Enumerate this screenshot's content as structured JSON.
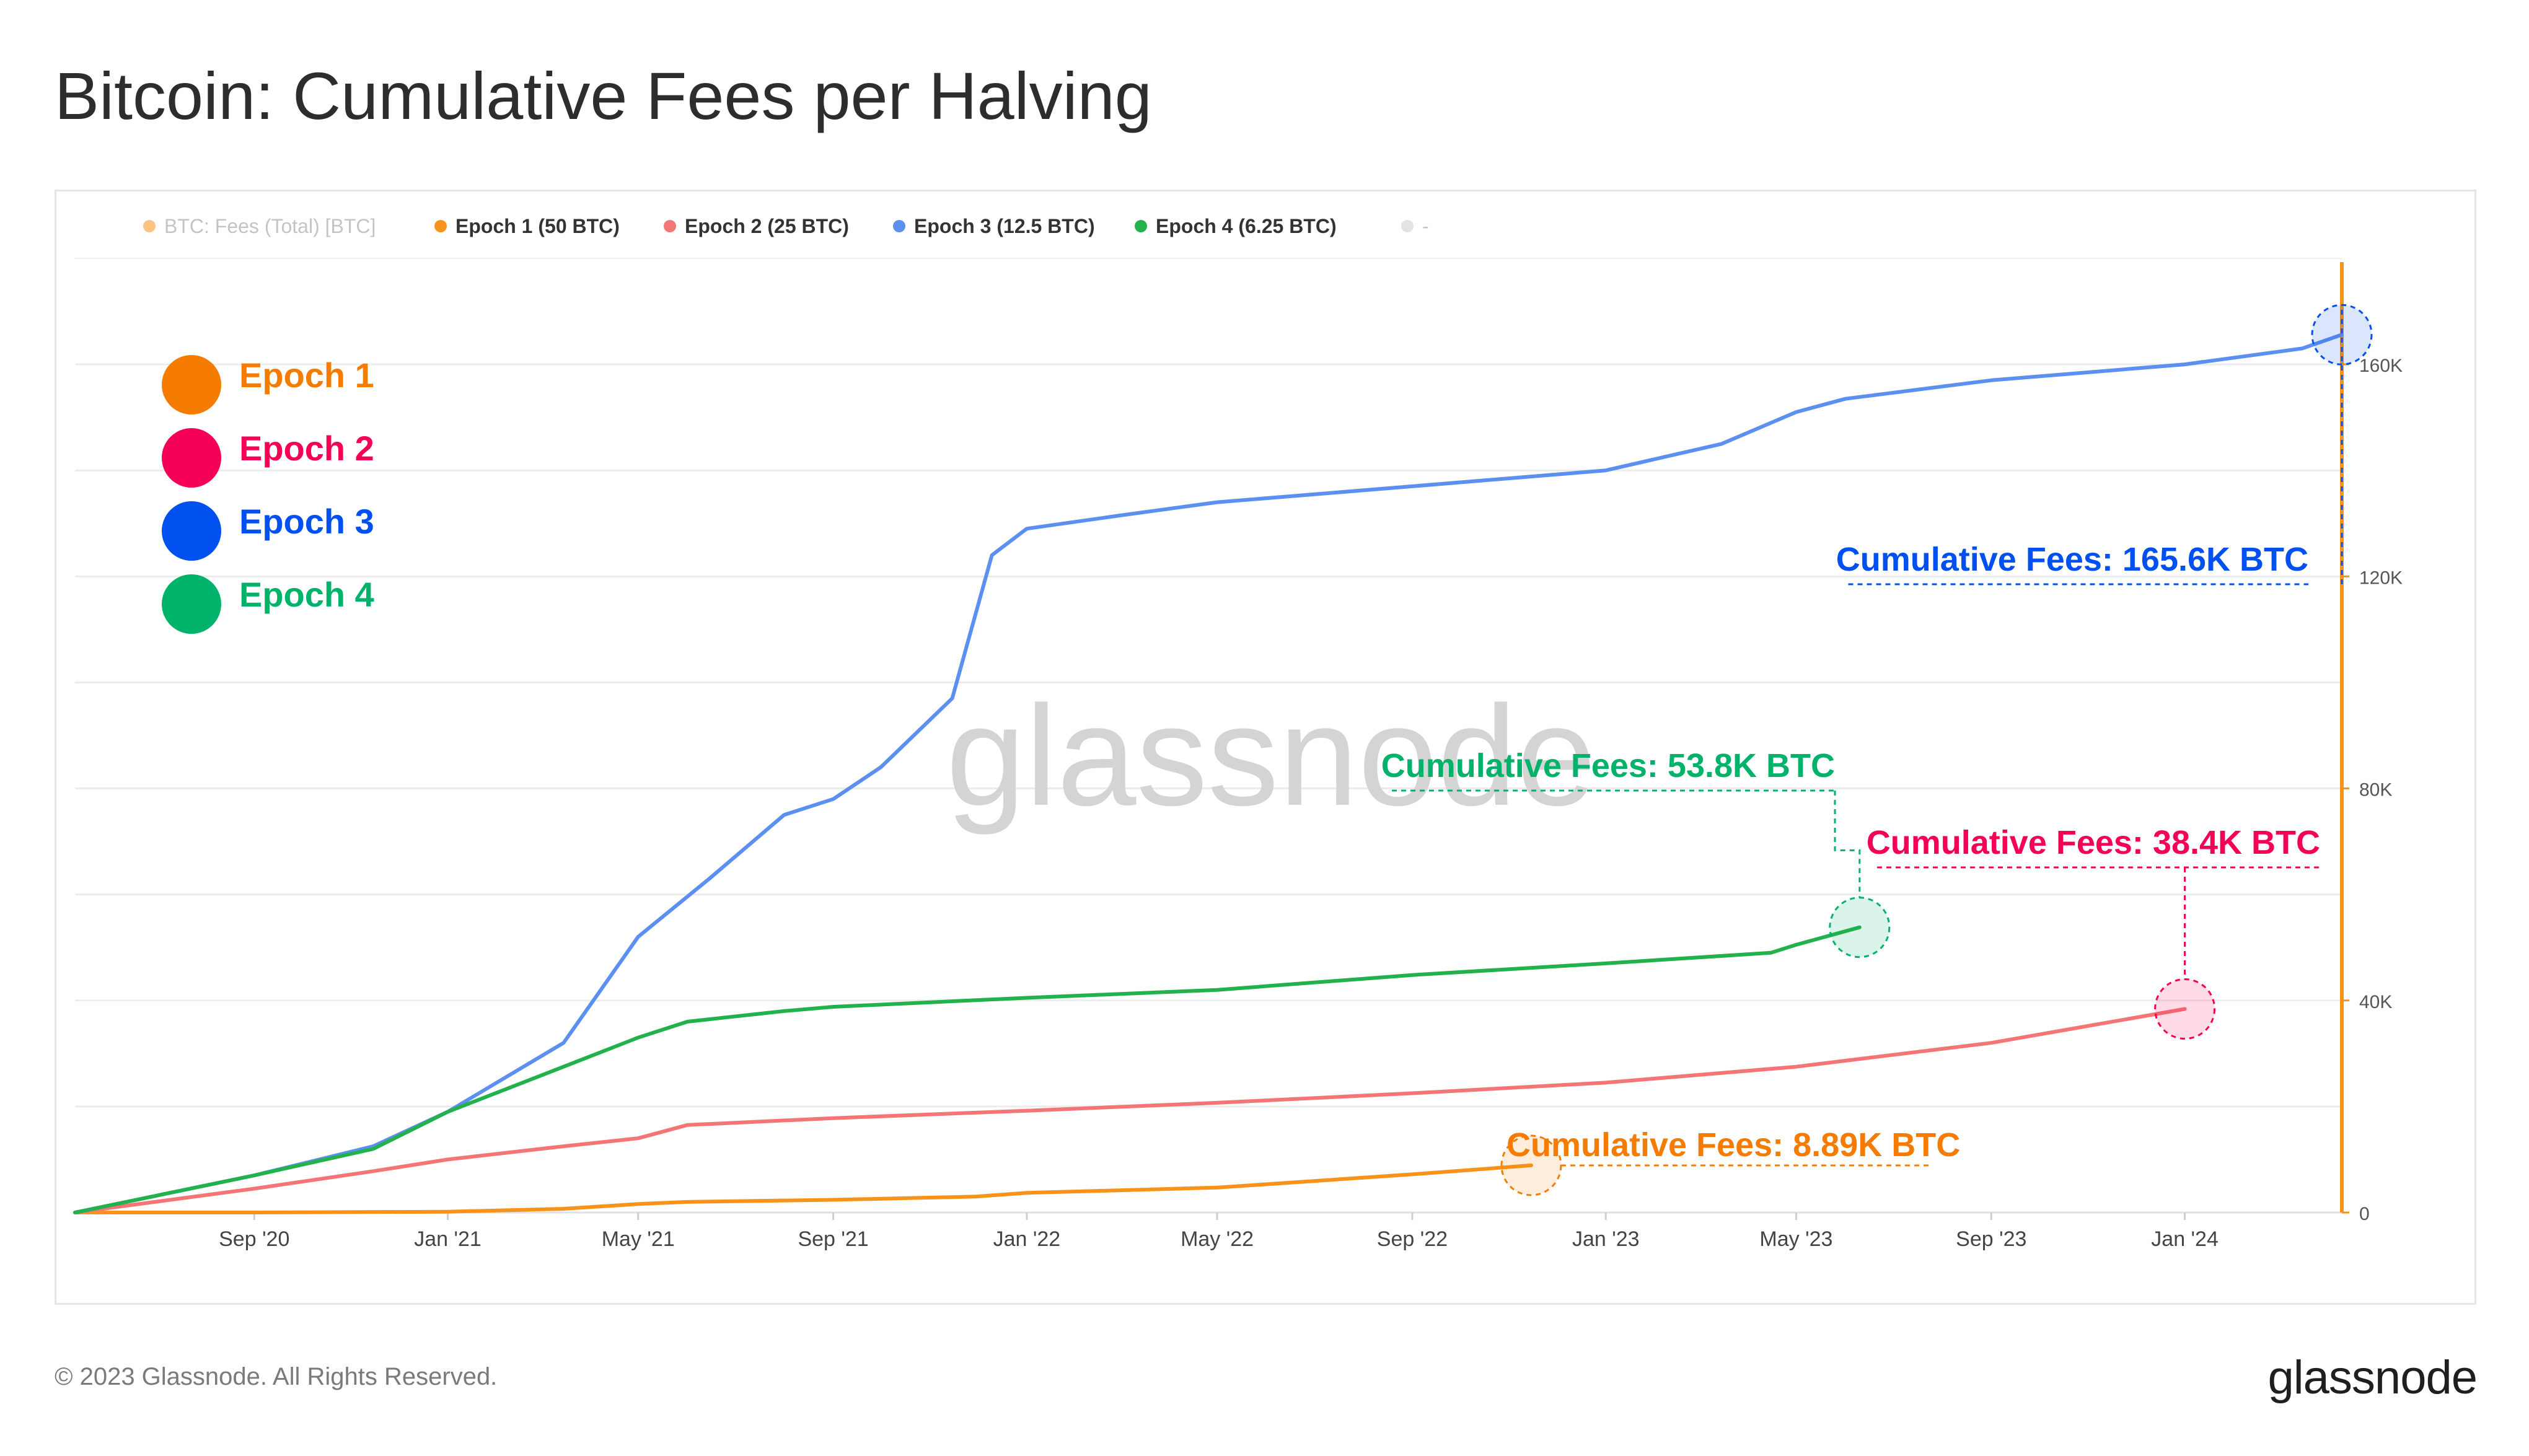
{
  "title": "Bitcoin: Cumulative Fees per Halving",
  "footer": {
    "copyright": "© 2023 Glassnode. All Rights Reserved.",
    "logo": "glassnode"
  },
  "watermark": "glassnode",
  "colors": {
    "epoch1": "#f7931a",
    "epoch2": "#f47575",
    "epoch3": "#5b8ff0",
    "epoch4": "#22b14c",
    "epoch1_label": "#f57c00",
    "epoch2_label": "#f50057",
    "epoch3_label": "#0050ef",
    "epoch4_label": "#00b26a",
    "axis_orange": "#f7931a",
    "grid": "#ececec"
  },
  "legend_top": [
    {
      "label": "BTC: Fees (Total) [BTC]",
      "color": "#f7931a",
      "muted": true
    },
    {
      "label": "Epoch 1 (50 BTC)",
      "color": "#f7931a",
      "muted": false
    },
    {
      "label": "Epoch 2 (25 BTC)",
      "color": "#f47575",
      "muted": false
    },
    {
      "label": "Epoch 3 (12.5 BTC)",
      "color": "#5b8ff0",
      "muted": false
    },
    {
      "label": "Epoch 4 (6.25 BTC)",
      "color": "#22b14c",
      "muted": false
    },
    {
      "label": "-",
      "color": "#cccccc",
      "muted": true
    }
  ],
  "legend_big": [
    {
      "label": "Epoch 1",
      "color": "#f57c00"
    },
    {
      "label": "Epoch 2",
      "color": "#f50057"
    },
    {
      "label": "Epoch 3",
      "color": "#0050ef"
    },
    {
      "label": "Epoch 4",
      "color": "#00b26a"
    }
  ],
  "annotations": [
    {
      "series": "Epoch 1",
      "text": "Cumulative Fees: 8.89K BTC",
      "color": "#f57c00"
    },
    {
      "series": "Epoch 2",
      "text": "Cumulative Fees: 38.4K BTC",
      "color": "#f50057"
    },
    {
      "series": "Epoch 3",
      "text": "Cumulative Fees: 165.6K BTC",
      "color": "#0050ef"
    },
    {
      "series": "Epoch 4",
      "text": "Cumulative Fees: 53.8K BTC",
      "color": "#00b26a"
    }
  ],
  "chart_data": {
    "type": "line",
    "title": "Bitcoin: Cumulative Fees per Halving",
    "xlabel": "",
    "ylabel": "",
    "x_unit": "days since halving (plotted on a shared calendar axis)",
    "x_ticks": [
      "Sep '20",
      "Jan '21",
      "May '21",
      "Sep '21",
      "Jan '22",
      "May '22",
      "Sep '22",
      "Jan '23",
      "May '23",
      "Sep '23",
      "Jan '24"
    ],
    "x_tick_dates": [
      "2020-09-01",
      "2021-01-01",
      "2021-05-01",
      "2021-09-01",
      "2022-01-01",
      "2022-05-01",
      "2022-09-01",
      "2023-01-01",
      "2023-05-01",
      "2023-09-01",
      "2024-01-01"
    ],
    "y_ticks": [
      "0",
      "40K",
      "80K",
      "120K",
      "160K"
    ],
    "y_tick_values": [
      0,
      40000,
      80000,
      120000,
      160000
    ],
    "ylim": [
      0,
      180000
    ],
    "xlim": [
      "2020-05-11",
      "2024-04-09"
    ],
    "grid": true,
    "y_axis_side": "right",
    "series": [
      {
        "name": "Epoch 1 (50 BTC)",
        "color": "#f7931a",
        "x": [
          "2020-05-11",
          "2020-09-01",
          "2021-01-01",
          "2021-03-15",
          "2021-05-01",
          "2021-06-01",
          "2021-09-01",
          "2021-11-30",
          "2022-01-01",
          "2022-05-01",
          "2022-09-01",
          "2022-11-15"
        ],
        "y": [
          0,
          0,
          150,
          700,
          1600,
          2000,
          2400,
          3000,
          3700,
          4700,
          7200,
          8890
        ]
      },
      {
        "name": "Epoch 2 (25 BTC)",
        "color": "#f47575",
        "x": [
          "2020-05-11",
          "2020-09-01",
          "2020-11-15",
          "2021-01-01",
          "2021-03-15",
          "2021-05-01",
          "2021-06-01",
          "2021-09-01",
          "2022-01-01",
          "2022-05-01",
          "2022-09-01",
          "2023-01-01",
          "2023-05-01",
          "2023-09-01",
          "2024-01-01"
        ],
        "y": [
          0,
          4500,
          7800,
          10000,
          12500,
          14000,
          16500,
          17800,
          19200,
          20700,
          22500,
          24500,
          27500,
          32000,
          38400
        ]
      },
      {
        "name": "Epoch 3 (12.5 BTC)",
        "color": "#5b8ff0",
        "x": [
          "2020-05-11",
          "2020-09-01",
          "2020-11-15",
          "2021-01-01",
          "2021-03-15",
          "2021-05-01",
          "2021-06-15",
          "2021-08-01",
          "2021-09-01",
          "2021-10-01",
          "2021-11-15",
          "2021-12-10",
          "2022-01-01",
          "2022-03-01",
          "2022-05-01",
          "2022-09-01",
          "2023-01-01",
          "2023-03-15",
          "2023-05-01",
          "2023-06-01",
          "2023-09-01",
          "2024-01-01",
          "2024-03-15",
          "2024-04-09"
        ],
        "y": [
          0,
          7000,
          12500,
          19000,
          32000,
          52000,
          63000,
          75000,
          78000,
          84000,
          97000,
          124000,
          129000,
          131500,
          134000,
          137000,
          140000,
          145000,
          151000,
          153500,
          157000,
          160000,
          163000,
          165600
        ]
      },
      {
        "name": "Epoch 4 (6.25 BTC)",
        "color": "#22b14c",
        "x": [
          "2020-05-11",
          "2020-09-01",
          "2020-11-15",
          "2021-01-01",
          "2021-03-15",
          "2021-05-01",
          "2021-06-01",
          "2021-08-01",
          "2021-09-01",
          "2022-01-01",
          "2022-05-01",
          "2022-09-01",
          "2023-01-01",
          "2023-04-15",
          "2023-05-01",
          "2023-06-10"
        ],
        "y": [
          0,
          7000,
          12000,
          19000,
          27500,
          33000,
          36000,
          38000,
          38800,
          40500,
          42000,
          44800,
          47000,
          49000,
          50500,
          53800
        ]
      }
    ]
  }
}
